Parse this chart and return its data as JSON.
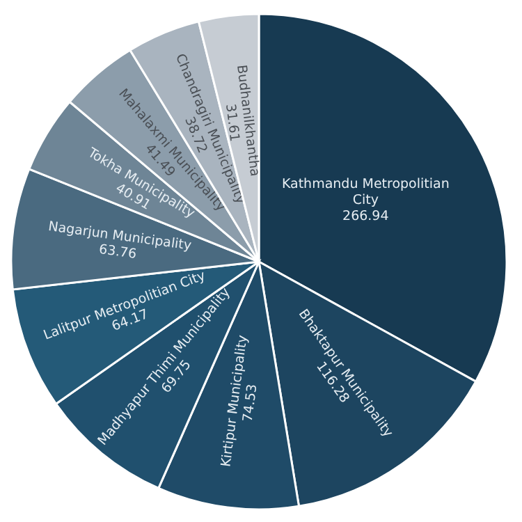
{
  "chart_data": {
    "type": "pie",
    "categories": [
      "Kathmandu Metropolitian City",
      "Bhaktapur Municipality",
      "Kirtipur Municipality",
      "Madhyapur Thimi Municipality",
      "Lalitpur Metropolitian City",
      "Nagarjun Municipality",
      "Tokha Municipality",
      "Mahalaxmi Municipality",
      "Chandragiri Municipality",
      "Budhanilkhantha"
    ],
    "values": [
      266.94,
      116.28,
      74.53,
      69.75,
      64.17,
      63.76,
      40.91,
      41.49,
      38.72,
      31.61
    ],
    "colors": [
      "#173a52",
      "#1d4560",
      "#1f4b68",
      "#20506e",
      "#245a78",
      "#4a6a80",
      "#6e8596",
      "#8c9dab",
      "#a9b4bf",
      "#c6ccd3"
    ],
    "data_labels": true
  }
}
